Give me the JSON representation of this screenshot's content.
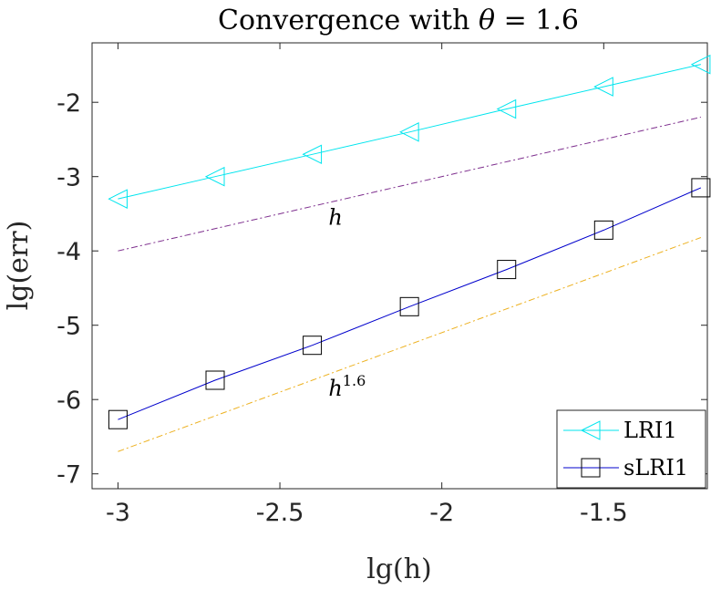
{
  "chart_data": {
    "type": "line",
    "title_prefix": "Convergence with ",
    "title_theta": "θ",
    "title_suffix": " = 1.6",
    "xlabel": "lg(h)",
    "ylabel": "lg(err)",
    "xlim": [
      -3.08,
      -1.18
    ],
    "ylim": [
      -7.2,
      -1.2
    ],
    "xticks": [
      -3,
      -2.5,
      -2,
      -1.5
    ],
    "yticks": [
      -2,
      -3,
      -4,
      -5,
      -6,
      -7
    ],
    "xtick_labels": [
      "-3",
      "-2.5",
      "-2",
      "-1.5"
    ],
    "ytick_labels": [
      "-2",
      "-3",
      "-4",
      "-5",
      "-6",
      "-7"
    ],
    "series": [
      {
        "name": "LRI1",
        "color": "#00e5ee",
        "marker": "triangle-left",
        "x": [
          -3.0,
          -2.7,
          -2.4,
          -2.1,
          -1.8,
          -1.5,
          -1.2
        ],
        "y": [
          -3.3,
          -3.0,
          -2.7,
          -2.4,
          -2.09,
          -1.79,
          -1.49
        ]
      },
      {
        "name": "sLRI1",
        "color": "#0000cc",
        "marker": "square",
        "x": [
          -3.0,
          -2.7,
          -2.4,
          -2.1,
          -1.8,
          -1.5,
          -1.2
        ],
        "y": [
          -6.27,
          -5.74,
          -5.27,
          -4.75,
          -4.25,
          -3.72,
          -3.15
        ]
      }
    ],
    "reference_lines": [
      {
        "label": "h",
        "exponent": "",
        "color": "#7e2f8e",
        "x": [
          -3.0,
          -1.2
        ],
        "y": [
          -4.0,
          -2.2
        ],
        "label_x": -2.35,
        "label_y": -3.65
      },
      {
        "label": "h",
        "exponent": "1.6",
        "color": "#edb120",
        "x": [
          -3.0,
          -1.2
        ],
        "y": [
          -6.7,
          -3.82
        ],
        "label_x": -2.35,
        "label_y": -5.95
      }
    ],
    "legend_position": "bottom-right"
  }
}
